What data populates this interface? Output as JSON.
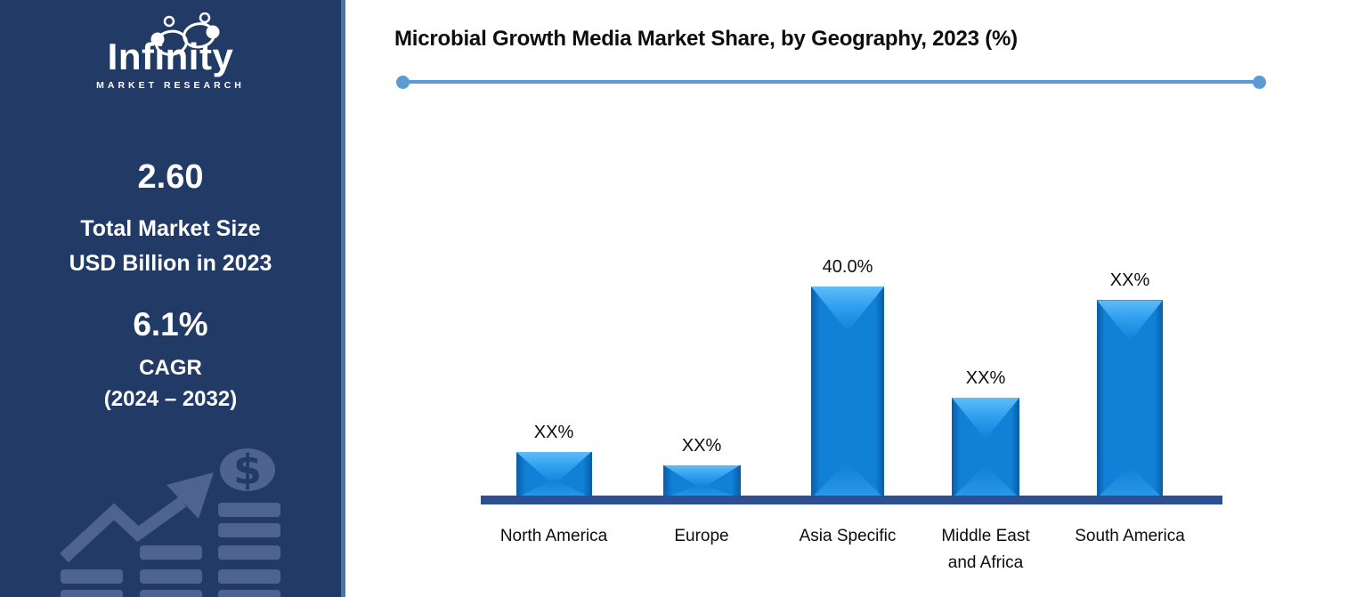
{
  "sidebar": {
    "logo": {
      "brand": "Infinity",
      "tagline": "MARKET RESEARCH"
    },
    "market_size": {
      "value": "2.60",
      "line1": "Total Market Size",
      "line2": "USD Billion in 2023"
    },
    "cagr": {
      "value": "6.1%",
      "label": "CAGR",
      "period": "(2024 – 2032)"
    }
  },
  "chart_data": {
    "type": "bar",
    "title": "Microbial Growth Media Market Share, by Geography, 2023 (%)",
    "categories": [
      "North America",
      "Europe",
      "Asia Specific",
      "Middle East and Africa",
      "South America"
    ],
    "categories_display": [
      "North America",
      "Europe",
      "Asia Specific",
      "Middle East\nand Africa",
      "South America"
    ],
    "data_labels": [
      "XX%",
      "XX%",
      "40.0%",
      "XX%",
      "XX%"
    ],
    "values_pct_est": [
      8.8,
      6.3,
      40.0,
      19.0,
      37.4
    ],
    "values_note": "Only Asia Specific is labeled (40.0%); other bars are masked as XX%, heights estimated from pixels",
    "xlabel": "",
    "ylabel": "",
    "ylim": [
      0,
      40
    ],
    "grid": false,
    "legend": false
  },
  "icons": {
    "infinity-logo-icon": "infinity loops with orbiting dots",
    "growth-arrow-icon": "zigzag upward trend arrow",
    "dollar-coin-icon": "coin with $ sign",
    "coin-stack-icon": "three rising stacks of coins",
    "line-endpoint-dot": "filled circle at accent line ends"
  },
  "colors": {
    "background": "#ffffff",
    "sidebar_bg": "#213a66",
    "sidebar_border": "#4a74a8",
    "sidebar_graphic": "#4e6390",
    "text_on_sidebar": "#ffffff",
    "title_text": "#0d0d0d",
    "accent_line": "#5b9bd5",
    "bar_fill": "#1081d6",
    "bar_bevel_light": "#5fbdf8",
    "bar_edge_dark": "#0a5ca6",
    "baseline": "#2e4e94"
  }
}
